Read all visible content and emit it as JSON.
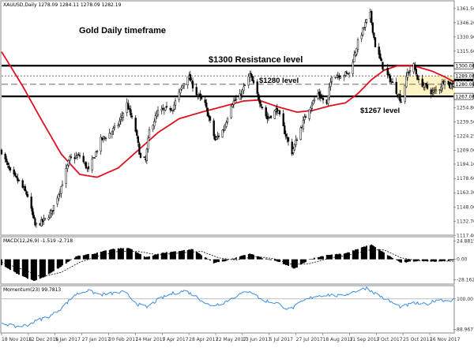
{
  "chart_data": {
    "type": "candlestick",
    "symbol_header": "XAUUSD,Daily  1278.09 1284.11 1278.09 1282.19",
    "annotations": {
      "title": "Gold Daily timeframe",
      "resistance_label": "$1300 Resistance level",
      "level_1280_label": "$1280 level",
      "level_1267_label": "$1267 level"
    },
    "price_axis": {
      "ylim": [
        1118.5,
        1369
      ],
      "ticks": [
        "1361.50",
        "1346.20",
        "1330.90",
        "1315.60",
        "1300.00",
        "1289.00",
        "1280.00",
        "1267.00",
        "1254.80",
        "1239.50",
        "1224.25",
        "1209.00",
        "1194.10",
        "1178.60",
        "1163.30",
        "1148.00",
        "1132.70",
        "1117.40"
      ]
    },
    "date_axis": {
      "first": "2016-11-18",
      "last": "2017-11-17",
      "labels": [
        "18 Nov 2016",
        "12 Dec 2016",
        "5 Jan 2017",
        "27 Jan 2017",
        "20 Feb 2017",
        "14 Mar 2017",
        "5 Apr 2017",
        "28 Apr 2017",
        "22 May 2017",
        "13 Jun 2017",
        "5 Jul 2017",
        "27 Jul 2017",
        "18 Aug 2017",
        "11 Sep 2017",
        "3 Oct 2017",
        "25 Oct 2017",
        "16 Nov 2017"
      ]
    },
    "levels": [
      {
        "name": "resistance_1300",
        "value": 1300.0,
        "style": "thick"
      },
      {
        "name": "level_1289",
        "value": 1289.0,
        "style": "dotted"
      },
      {
        "name": "level_1280",
        "value": 1280.0,
        "style": "dashed"
      },
      {
        "name": "level_1267",
        "value": 1267.0,
        "style": "thick"
      }
    ],
    "price_tags": [
      {
        "value": 1300.0,
        "text": "1300.00",
        "highlight": false
      },
      {
        "value": 1289.0,
        "text": "1289.00",
        "highlight": false
      },
      {
        "value": 1282.19,
        "text": "1282.19",
        "highlight": true
      },
      {
        "value": 1280.0,
        "text": "1280.00",
        "highlight": false
      },
      {
        "value": 1267.0,
        "text": "1267.00",
        "highlight": false
      }
    ],
    "highlight_zone": {
      "from": "2017-10-03",
      "to": "2017-11-17",
      "low": 1267,
      "high": 1289,
      "color": "#fdf3c4"
    },
    "price_keypoints": [
      [
        "2016-11-18",
        1208
      ],
      [
        "2016-11-25",
        1185
      ],
      [
        "2016-12-02",
        1175
      ],
      [
        "2016-12-09",
        1160
      ],
      [
        "2016-12-15",
        1128
      ],
      [
        "2016-12-22",
        1133
      ],
      [
        "2016-12-28",
        1142
      ],
      [
        "2017-01-05",
        1170
      ],
      [
        "2017-01-12",
        1200
      ],
      [
        "2017-01-20",
        1203
      ],
      [
        "2017-01-27",
        1187
      ],
      [
        "2017-02-06",
        1220
      ],
      [
        "2017-02-14",
        1228
      ],
      [
        "2017-02-20",
        1237
      ],
      [
        "2017-02-27",
        1259
      ],
      [
        "2017-03-06",
        1230
      ],
      [
        "2017-03-10",
        1200
      ],
      [
        "2017-03-14",
        1198
      ],
      [
        "2017-03-17",
        1230
      ],
      [
        "2017-03-24",
        1250
      ],
      [
        "2017-04-05",
        1255
      ],
      [
        "2017-04-11",
        1273
      ],
      [
        "2017-04-17",
        1290
      ],
      [
        "2017-04-24",
        1270
      ],
      [
        "2017-05-01",
        1258
      ],
      [
        "2017-05-09",
        1220
      ],
      [
        "2017-05-16",
        1232
      ],
      [
        "2017-05-22",
        1259
      ],
      [
        "2017-05-29",
        1267
      ],
      [
        "2017-06-06",
        1290
      ],
      [
        "2017-06-13",
        1265
      ],
      [
        "2017-06-20",
        1243
      ],
      [
        "2017-06-28",
        1253
      ],
      [
        "2017-07-05",
        1225
      ],
      [
        "2017-07-10",
        1207
      ],
      [
        "2017-07-17",
        1233
      ],
      [
        "2017-07-24",
        1255
      ],
      [
        "2017-07-31",
        1270
      ],
      [
        "2017-08-07",
        1258
      ],
      [
        "2017-08-11",
        1290
      ],
      [
        "2017-08-18",
        1290
      ],
      [
        "2017-08-25",
        1292
      ],
      [
        "2017-09-01",
        1325
      ],
      [
        "2017-09-08",
        1348
      ],
      [
        "2017-09-11",
        1355
      ],
      [
        "2017-09-15",
        1322
      ],
      [
        "2017-09-22",
        1295
      ],
      [
        "2017-09-28",
        1283
      ],
      [
        "2017-10-03",
        1270
      ],
      [
        "2017-10-06",
        1262
      ],
      [
        "2017-10-11",
        1292
      ],
      [
        "2017-10-16",
        1300
      ],
      [
        "2017-10-20",
        1283
      ],
      [
        "2017-10-25",
        1278
      ],
      [
        "2017-10-31",
        1271
      ],
      [
        "2017-11-06",
        1276
      ],
      [
        "2017-11-10",
        1286
      ],
      [
        "2017-11-14",
        1278
      ],
      [
        "2017-11-17",
        1282
      ]
    ],
    "ma": {
      "color": "#e01020",
      "keypoints": [
        [
          "2016-11-18",
          1315
        ],
        [
          "2016-12-05",
          1278
        ],
        [
          "2016-12-20",
          1242
        ],
        [
          "2017-01-05",
          1205
        ],
        [
          "2017-01-20",
          1183
        ],
        [
          "2017-02-03",
          1180
        ],
        [
          "2017-02-20",
          1190
        ],
        [
          "2017-03-08",
          1209
        ],
        [
          "2017-03-24",
          1228
        ],
        [
          "2017-04-10",
          1243
        ],
        [
          "2017-04-28",
          1250
        ],
        [
          "2017-05-15",
          1256
        ],
        [
          "2017-06-01",
          1262
        ],
        [
          "2017-06-13",
          1263
        ],
        [
          "2017-06-28",
          1256
        ],
        [
          "2017-07-14",
          1250
        ],
        [
          "2017-07-27",
          1252
        ],
        [
          "2017-08-10",
          1257
        ],
        [
          "2017-08-22",
          1260
        ],
        [
          "2017-09-01",
          1270
        ],
        [
          "2017-09-12",
          1285
        ],
        [
          "2017-09-22",
          1295
        ],
        [
          "2017-10-03",
          1300
        ],
        [
          "2017-10-16",
          1300
        ],
        [
          "2017-10-31",
          1294
        ],
        [
          "2017-11-10",
          1288
        ],
        [
          "2017-11-17",
          1283
        ]
      ]
    },
    "macd": {
      "label": "MACD(12,26,9) -1.519 -2.718",
      "ticks": [
        "24.8815",
        "0.00",
        "-28.1625"
      ],
      "ylim": [
        -33,
        30
      ],
      "histogram_keypoints": [
        [
          "2016-11-18",
          -8
        ],
        [
          "2016-12-01",
          -20
        ],
        [
          "2016-12-14",
          -30
        ],
        [
          "2016-12-23",
          -24
        ],
        [
          "2017-01-05",
          -10
        ],
        [
          "2017-01-18",
          5
        ],
        [
          "2017-02-01",
          8
        ],
        [
          "2017-02-15",
          14
        ],
        [
          "2017-02-28",
          16
        ],
        [
          "2017-03-14",
          3
        ],
        [
          "2017-03-28",
          9
        ],
        [
          "2017-04-12",
          12
        ],
        [
          "2017-04-21",
          14
        ],
        [
          "2017-05-08",
          -5
        ],
        [
          "2017-05-18",
          -2
        ],
        [
          "2017-06-06",
          8
        ],
        [
          "2017-06-16",
          2
        ],
        [
          "2017-06-30",
          -4
        ],
        [
          "2017-07-12",
          -13
        ],
        [
          "2017-07-24",
          0
        ],
        [
          "2017-08-07",
          6
        ],
        [
          "2017-08-22",
          8
        ],
        [
          "2017-09-05",
          17
        ],
        [
          "2017-09-12",
          20
        ],
        [
          "2017-09-25",
          6
        ],
        [
          "2017-10-06",
          -5
        ],
        [
          "2017-10-20",
          -2
        ],
        [
          "2017-11-03",
          -3
        ],
        [
          "2017-11-17",
          -1.5
        ]
      ],
      "signal_keypoints": [
        [
          "2016-11-18",
          -4
        ],
        [
          "2016-12-05",
          -14
        ],
        [
          "2016-12-20",
          -24
        ],
        [
          "2017-01-05",
          -18
        ],
        [
          "2017-01-20",
          -4
        ],
        [
          "2017-02-05",
          5
        ],
        [
          "2017-02-20",
          11
        ],
        [
          "2017-03-08",
          11
        ],
        [
          "2017-03-24",
          6
        ],
        [
          "2017-04-12",
          9
        ],
        [
          "2017-04-28",
          11
        ],
        [
          "2017-05-12",
          2
        ],
        [
          "2017-05-26",
          -1
        ],
        [
          "2017-06-10",
          4
        ],
        [
          "2017-06-25",
          1
        ],
        [
          "2017-07-10",
          -7
        ],
        [
          "2017-07-24",
          -6
        ],
        [
          "2017-08-10",
          2
        ],
        [
          "2017-08-25",
          6
        ],
        [
          "2017-09-10",
          13
        ],
        [
          "2017-09-22",
          13
        ],
        [
          "2017-10-06",
          2
        ],
        [
          "2017-10-20",
          -2
        ],
        [
          "2017-11-17",
          -2.7
        ]
      ]
    },
    "momentum": {
      "label": "Momentum(23) 99.7813",
      "ticks": [
        "100.00",
        "88.9677"
      ],
      "ylim": [
        88,
        104.5
      ],
      "line_color": "#3a8ee6",
      "keypoints": [
        [
          "2016-11-18",
          91.5
        ],
        [
          "2016-11-28",
          90
        ],
        [
          "2016-12-08",
          90.5
        ],
        [
          "2016-12-18",
          92.5
        ],
        [
          "2016-12-28",
          94
        ],
        [
          "2017-01-06",
          97
        ],
        [
          "2017-01-16",
          101.5
        ],
        [
          "2017-01-26",
          103
        ],
        [
          "2017-02-05",
          101.5
        ],
        [
          "2017-02-15",
          102
        ],
        [
          "2017-02-25",
          102.5
        ],
        [
          "2017-03-08",
          98
        ],
        [
          "2017-03-15",
          97
        ],
        [
          "2017-03-25",
          100
        ],
        [
          "2017-04-05",
          102
        ],
        [
          "2017-04-15",
          103
        ],
        [
          "2017-04-25",
          100.5
        ],
        [
          "2017-05-05",
          97.5
        ],
        [
          "2017-05-15",
          98.5
        ],
        [
          "2017-05-28",
          101.5
        ],
        [
          "2017-06-06",
          103
        ],
        [
          "2017-06-16",
          99.5
        ],
        [
          "2017-06-28",
          98.5
        ],
        [
          "2017-07-08",
          96
        ],
        [
          "2017-07-18",
          99
        ],
        [
          "2017-07-28",
          101
        ],
        [
          "2017-08-08",
          101.5
        ],
        [
          "2017-08-18",
          101
        ],
        [
          "2017-08-28",
          102.5
        ],
        [
          "2017-09-08",
          104
        ],
        [
          "2017-09-15",
          102
        ],
        [
          "2017-09-25",
          99.5
        ],
        [
          "2017-10-06",
          97
        ],
        [
          "2017-10-16",
          98.5
        ],
        [
          "2017-10-26",
          98
        ],
        [
          "2017-11-05",
          100
        ],
        [
          "2017-11-12",
          99.2
        ],
        [
          "2017-11-17",
          99.8
        ]
      ]
    }
  }
}
